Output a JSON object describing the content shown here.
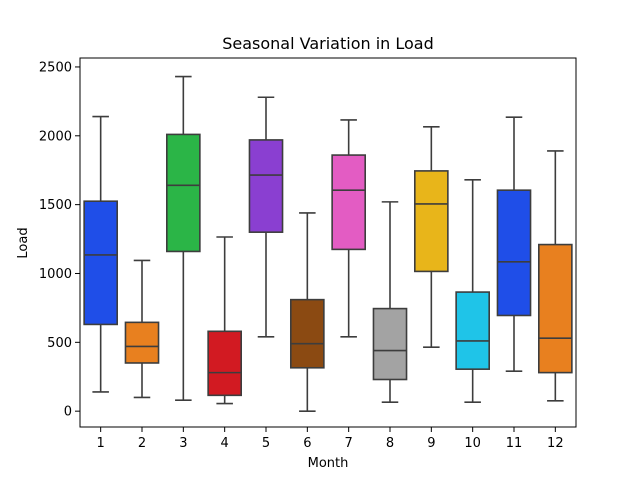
{
  "chart_data": {
    "type": "box",
    "title": "Seasonal Variation in Load",
    "xlabel": "Month",
    "ylabel": "Load",
    "ylim": [
      -115,
      2565
    ],
    "yticks": [
      0,
      500,
      1000,
      1500,
      2000,
      2500
    ],
    "grid": false,
    "categories": [
      "1",
      "2",
      "3",
      "4",
      "5",
      "6",
      "7",
      "8",
      "9",
      "10",
      "11",
      "12"
    ],
    "boxes": [
      {
        "category": "1",
        "whisker_low": 140,
        "q1": 630,
        "median": 1135,
        "q3": 1525,
        "whisker_high": 2140,
        "color": "#1f4ee8"
      },
      {
        "category": "2",
        "whisker_low": 100,
        "q1": 350,
        "median": 470,
        "q3": 645,
        "whisker_high": 1095,
        "color": "#e8801f"
      },
      {
        "category": "3",
        "whisker_low": 80,
        "q1": 1160,
        "median": 1640,
        "q3": 2010,
        "whisker_high": 2430,
        "color": "#2bb547"
      },
      {
        "category": "4",
        "whisker_low": 55,
        "q1": 115,
        "median": 280,
        "q3": 580,
        "whisker_high": 1265,
        "color": "#d21a22"
      },
      {
        "category": "5",
        "whisker_low": 540,
        "q1": 1300,
        "median": 1715,
        "q3": 1970,
        "whisker_high": 2280,
        "color": "#8a3fd1"
      },
      {
        "category": "6",
        "whisker_low": 0,
        "q1": 315,
        "median": 490,
        "q3": 810,
        "whisker_high": 1440,
        "color": "#8b4a12"
      },
      {
        "category": "7",
        "whisker_low": 540,
        "q1": 1175,
        "median": 1605,
        "q3": 1860,
        "whisker_high": 2115,
        "color": "#e35cc3"
      },
      {
        "category": "8",
        "whisker_low": 65,
        "q1": 230,
        "median": 440,
        "q3": 745,
        "whisker_high": 1520,
        "color": "#a3a3a3"
      },
      {
        "category": "9",
        "whisker_low": 465,
        "q1": 1015,
        "median": 1505,
        "q3": 1745,
        "whisker_high": 2065,
        "color": "#e8b51a"
      },
      {
        "category": "10",
        "whisker_low": 65,
        "q1": 305,
        "median": 510,
        "q3": 865,
        "whisker_high": 1680,
        "color": "#1fc4e8"
      },
      {
        "category": "11",
        "whisker_low": 290,
        "q1": 695,
        "median": 1085,
        "q3": 1605,
        "whisker_high": 2135,
        "color": "#1f4ee8"
      },
      {
        "category": "12",
        "whisker_low": 75,
        "q1": 280,
        "median": 530,
        "q3": 1210,
        "whisker_high": 1890,
        "color": "#e8801f"
      }
    ]
  }
}
